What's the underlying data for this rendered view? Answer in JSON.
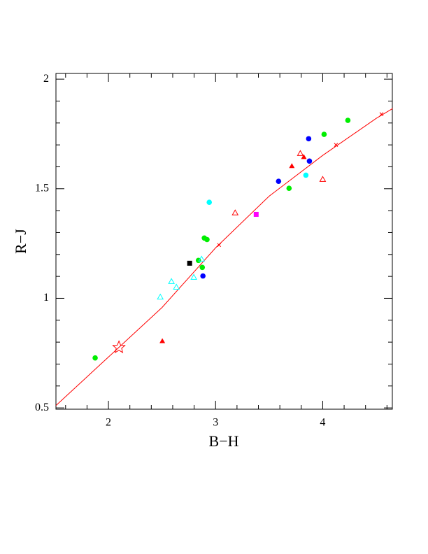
{
  "chart_data": {
    "type": "scatter",
    "xlabel": "B−H",
    "ylabel": "R−J",
    "xlim": [
      1.51,
      4.65
    ],
    "ylim": [
      0.494,
      2.026
    ],
    "xticks": [
      2,
      3,
      4
    ],
    "yticks": [
      0.5,
      1,
      1.5,
      2
    ],
    "xminorticks": [
      1.6,
      1.8,
      2.2,
      2.4,
      2.6,
      2.8,
      3.2,
      3.4,
      3.6,
      3.8,
      4.2,
      4.4,
      4.6
    ],
    "yminorticks": [
      0.6,
      0.7,
      0.8,
      0.9,
      1.1,
      1.2,
      1.3,
      1.4,
      1.6,
      1.7,
      1.8,
      1.9
    ],
    "series": [
      {
        "marker": "line",
        "color": "#ff0000",
        "x": [
          1.51,
          2.0,
          2.5,
          3.0,
          3.5,
          4.0,
          4.5,
          4.654
        ],
        "values": [
          0.511,
          0.732,
          0.958,
          1.23,
          1.466,
          1.652,
          1.821,
          1.866
        ]
      },
      {
        "marker": "cross",
        "color": "#ff0000",
        "x": [
          3.033,
          4.124,
          4.549
        ],
        "values": [
          1.243,
          1.7,
          1.84
        ]
      },
      {
        "marker": "circle",
        "color": "#00ee00",
        "x": [
          1.876,
          2.895,
          2.92,
          2.84,
          2.876,
          3.686,
          4.013,
          4.235
        ],
        "values": [
          0.728,
          1.275,
          1.268,
          1.173,
          1.141,
          1.502,
          1.748,
          1.812
        ]
      },
      {
        "marker": "circle",
        "color": "#0000ff",
        "x": [
          2.882,
          3.588,
          3.869,
          3.876
        ],
        "values": [
          1.102,
          1.534,
          1.728,
          1.626
        ]
      },
      {
        "marker": "circle",
        "color": "#00ffff",
        "x": [
          2.941,
          3.843
        ],
        "values": [
          1.438,
          1.562
        ]
      },
      {
        "marker": "square",
        "color": "#000000",
        "x": [
          2.758
        ],
        "values": [
          1.16
        ]
      },
      {
        "marker": "square",
        "color": "#ff00ff",
        "x": [
          3.379
        ],
        "values": [
          1.383
        ]
      },
      {
        "marker": "triangle",
        "color": "#ff0000",
        "x": [
          2.503,
          3.712,
          3.824
        ],
        "values": [
          0.805,
          1.604,
          1.645
        ]
      },
      {
        "marker": "triangle-open",
        "color": "#ff0000",
        "x": [
          3.183,
          3.791,
          4.0
        ],
        "values": [
          1.39,
          1.661,
          1.543
        ]
      },
      {
        "marker": "triangle-open",
        "color": "#00ffff",
        "x": [
          2.484,
          2.588,
          2.634,
          2.797,
          2.869
        ],
        "values": [
          1.006,
          1.077,
          1.051,
          1.096,
          1.179
        ]
      },
      {
        "marker": "star-open",
        "color": "#ff0000",
        "x": [
          2.098
        ],
        "values": [
          0.776
        ]
      }
    ]
  }
}
